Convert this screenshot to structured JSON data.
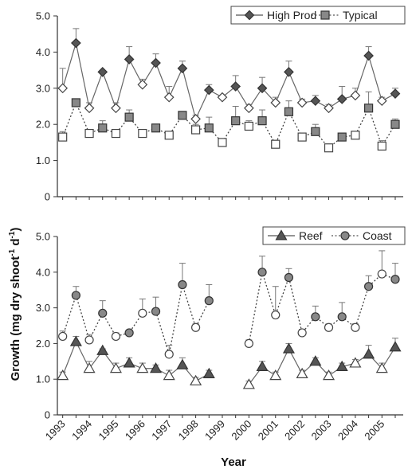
{
  "chart_data": [
    {
      "type": "line",
      "panel": "top",
      "ylim": [
        0,
        5
      ],
      "yticks": [
        "0",
        "1.0",
        "2.0",
        "3.0",
        "4.0",
        "5.0"
      ],
      "legend": "top-right",
      "series": [
        {
          "name": "High Prod",
          "style": "solid",
          "color": "#555555",
          "x": [
            1993.0,
            1993.5,
            1994.0,
            1994.5,
            1995.0,
            1995.5,
            1996.0,
            1996.5,
            1997.0,
            1997.5,
            1998.0,
            1998.5,
            1999.0,
            1999.5,
            2000.0,
            2000.5,
            2001.0,
            2001.5,
            2002.0,
            2002.5,
            2003.0,
            2003.5,
            2004.0,
            2004.5,
            2005.0,
            2005.5
          ],
          "values": [
            3.0,
            4.25,
            2.45,
            3.45,
            2.45,
            3.8,
            3.1,
            3.7,
            2.75,
            3.55,
            2.15,
            2.95,
            2.75,
            3.05,
            2.45,
            3.0,
            2.6,
            3.45,
            2.6,
            2.65,
            2.45,
            2.7,
            2.8,
            3.9,
            2.65,
            2.85
          ],
          "error": [
            0.55,
            0.4,
            0.15,
            0.0,
            0.15,
            0.35,
            0.15,
            0.25,
            0.3,
            0.2,
            0.1,
            0.15,
            0.0,
            0.3,
            0.1,
            0.3,
            0.15,
            0.3,
            0.1,
            0.15,
            0.1,
            0.35,
            0.2,
            0.25,
            0.1,
            0.15
          ],
          "filled": [
            false,
            true,
            false,
            true,
            false,
            true,
            false,
            true,
            false,
            true,
            false,
            true,
            false,
            true,
            false,
            true,
            false,
            true,
            false,
            true,
            false,
            true,
            false,
            true,
            false,
            true
          ]
        },
        {
          "name": "Typical",
          "style": "dotted",
          "color": "#888888",
          "x": [
            1993.0,
            1993.5,
            1994.0,
            1994.5,
            1995.0,
            1995.5,
            1996.0,
            1996.5,
            1997.0,
            1997.5,
            1998.0,
            1998.5,
            1999.0,
            1999.5,
            2000.0,
            2000.5,
            2001.0,
            2001.5,
            2002.0,
            2002.5,
            2003.0,
            2003.5,
            2004.0,
            2004.5,
            2005.0,
            2005.5
          ],
          "values": [
            1.65,
            2.6,
            1.75,
            1.9,
            1.75,
            2.2,
            1.75,
            1.9,
            1.7,
            2.25,
            1.85,
            1.9,
            1.5,
            2.1,
            1.95,
            2.1,
            1.45,
            2.35,
            1.65,
            1.8,
            1.35,
            1.65,
            1.7,
            2.45,
            1.4,
            2.0
          ],
          "error": [
            0.15,
            0.1,
            0.1,
            0.2,
            0.1,
            0.2,
            0.1,
            0.1,
            0.05,
            0.1,
            0.15,
            0.3,
            0.1,
            0.4,
            0.15,
            0.3,
            0.1,
            0.3,
            0.1,
            0.2,
            0.1,
            0.1,
            0.1,
            0.45,
            0.15,
            0.15
          ],
          "filled": [
            false,
            true,
            false,
            true,
            false,
            true,
            false,
            true,
            false,
            true,
            false,
            true,
            false,
            true,
            false,
            true,
            false,
            true,
            false,
            true,
            false,
            true,
            false,
            true,
            false,
            true
          ]
        }
      ]
    },
    {
      "type": "line",
      "panel": "bottom",
      "ylim": [
        0,
        5
      ],
      "yticks": [
        "0",
        "1.0",
        "2.0",
        "3.0",
        "4.0",
        "5.0"
      ],
      "xlabel": "Year",
      "xticks": [
        "1993",
        "1994",
        "1995",
        "1996",
        "1997",
        "1998",
        "1999",
        "2000",
        "2001",
        "2002",
        "2003",
        "2004",
        "2005"
      ],
      "legend": "top-right",
      "series": [
        {
          "name": "Reef",
          "style": "solid",
          "color": "#555555",
          "x": [
            1993.0,
            1993.5,
            1994.0,
            1994.5,
            1995.0,
            1995.5,
            1996.0,
            1996.5,
            1997.0,
            1997.5,
            1998.0,
            1998.5,
            2000.0,
            2000.5,
            2001.0,
            2001.5,
            2002.0,
            2002.5,
            2003.0,
            2003.5,
            2004.0,
            2004.5,
            2005.0,
            2005.5
          ],
          "values": [
            1.1,
            2.05,
            1.3,
            1.8,
            1.3,
            1.45,
            1.3,
            1.3,
            1.1,
            1.4,
            0.95,
            1.15,
            0.85,
            1.35,
            1.1,
            1.85,
            1.15,
            1.5,
            1.1,
            1.35,
            1.45,
            1.7,
            1.3,
            1.9
          ],
          "error": [
            0.1,
            0.15,
            0.2,
            0.05,
            0.15,
            0.15,
            0.15,
            0.1,
            0.15,
            0.2,
            0.1,
            0.1,
            0.1,
            0.15,
            0.1,
            0.15,
            0.1,
            0.1,
            0.1,
            0.1,
            0.1,
            0.25,
            0.15,
            0.25
          ],
          "filled": [
            false,
            true,
            false,
            true,
            false,
            true,
            false,
            true,
            false,
            true,
            false,
            true,
            false,
            true,
            false,
            true,
            false,
            true,
            false,
            true,
            false,
            true,
            false,
            true
          ]
        },
        {
          "name": "Coast",
          "style": "dotted",
          "color": "#888888",
          "x": [
            1993.0,
            1993.5,
            1994.0,
            1994.5,
            1995.0,
            1995.5,
            1996.0,
            1996.5,
            1997.0,
            1997.5,
            1998.0,
            1998.5,
            2000.0,
            2000.5,
            2001.0,
            2001.5,
            2002.0,
            2002.5,
            2003.0,
            2003.5,
            2004.0,
            2004.5,
            2005.0,
            2005.5
          ],
          "values": [
            2.2,
            3.35,
            2.1,
            2.85,
            2.2,
            2.3,
            2.85,
            2.9,
            1.7,
            3.65,
            2.45,
            3.2,
            2.0,
            4.0,
            2.8,
            3.85,
            2.3,
            2.75,
            2.45,
            2.75,
            2.45,
            3.6,
            3.95,
            3.8
          ],
          "error": [
            0.15,
            0.25,
            0.15,
            0.35,
            0.1,
            0.05,
            0.4,
            0.4,
            0.25,
            0.6,
            0.1,
            0.45,
            0.1,
            0.45,
            0.8,
            0.25,
            0.1,
            0.3,
            0.1,
            0.4,
            0.1,
            0.3,
            0.65,
            0.45
          ],
          "filled": [
            false,
            true,
            false,
            true,
            false,
            true,
            false,
            true,
            false,
            true,
            false,
            true,
            false,
            true,
            false,
            true,
            false,
            true,
            false,
            true,
            false,
            true,
            false,
            true
          ]
        }
      ]
    }
  ],
  "ylabel": "Growth (mg dry shoot",
  "ylabel_sup": "-1",
  "ylabel_mid": " d",
  "ylabel_end": ")"
}
